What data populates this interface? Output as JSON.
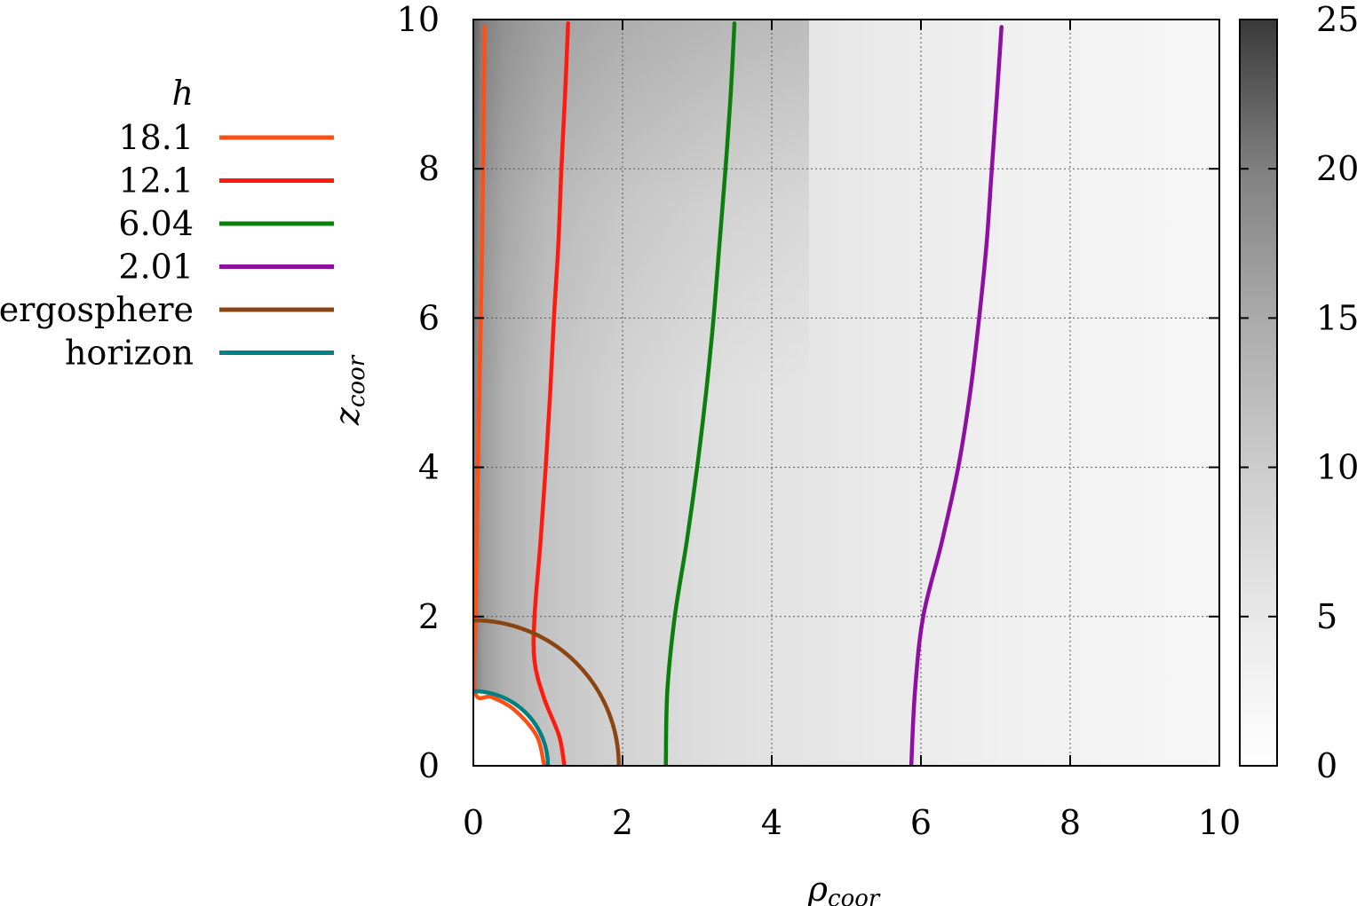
{
  "chart_data": {
    "type": "heatmap",
    "title": "",
    "xlabel": "ρ",
    "xlabel_sub": "coor",
    "ylabel": "z",
    "ylabel_sub": "coor",
    "xlim": [
      0,
      10
    ],
    "ylim": [
      0,
      10
    ],
    "x_ticks": [
      "0",
      "2",
      "4",
      "6",
      "8",
      "10"
    ],
    "y_ticks": [
      "0",
      "2",
      "4",
      "6",
      "8",
      "10"
    ],
    "grid": true,
    "colorbar": {
      "range": [
        0,
        25
      ],
      "ticks": [
        "0",
        "5",
        "10",
        "15",
        "20",
        "25"
      ],
      "colormap": "white-to-black grayscale"
    },
    "legend": {
      "title": "h",
      "placement": "left, outside plot"
    },
    "series": [
      {
        "name": "18.1",
        "color": "#ff4f14",
        "kind": "contour",
        "points": [
          [
            0.95,
            0
          ],
          [
            0.85,
            0.4
          ],
          [
            0.55,
            0.75
          ],
          [
            0.25,
            0.92
          ],
          [
            0.02,
            1.0
          ],
          [
            0.03,
            2
          ],
          [
            0.06,
            4
          ],
          [
            0.1,
            6
          ],
          [
            0.13,
            8
          ],
          [
            0.15,
            9.9
          ]
        ]
      },
      {
        "name": "12.1",
        "color": "#ff1a0f",
        "kind": "contour",
        "points": [
          [
            1.22,
            0
          ],
          [
            1.15,
            0.4
          ],
          [
            0.95,
            0.9
          ],
          [
            0.82,
            1.4
          ],
          [
            0.82,
            2
          ],
          [
            0.9,
            3
          ],
          [
            0.97,
            4
          ],
          [
            1.03,
            5
          ],
          [
            1.08,
            6
          ],
          [
            1.14,
            7
          ],
          [
            1.18,
            8
          ],
          [
            1.23,
            9
          ],
          [
            1.27,
            9.95
          ]
        ]
      },
      {
        "name": "6.04",
        "color": "#0b7f0b",
        "kind": "contour",
        "points": [
          [
            2.58,
            0
          ],
          [
            2.6,
            1
          ],
          [
            2.7,
            2
          ],
          [
            2.86,
            3
          ],
          [
            3.0,
            4
          ],
          [
            3.12,
            5
          ],
          [
            3.22,
            6
          ],
          [
            3.3,
            7
          ],
          [
            3.38,
            8
          ],
          [
            3.45,
            9
          ],
          [
            3.5,
            9.95
          ]
        ]
      },
      {
        "name": "2.01",
        "color": "#8f0fa3",
        "kind": "contour",
        "points": [
          [
            5.87,
            0
          ],
          [
            5.92,
            1
          ],
          [
            6.03,
            2
          ],
          [
            6.28,
            3
          ],
          [
            6.5,
            4
          ],
          [
            6.66,
            5
          ],
          [
            6.78,
            6
          ],
          [
            6.88,
            7
          ],
          [
            6.95,
            8
          ],
          [
            7.02,
            9
          ],
          [
            7.08,
            9.9
          ]
        ]
      },
      {
        "name": "ergosphere",
        "color": "#8b4513",
        "kind": "circle",
        "center": [
          0,
          0
        ],
        "radius": 1.95
      },
      {
        "name": "horizon",
        "color": "#008080",
        "kind": "circle",
        "center": [
          0,
          0
        ],
        "radius": 1.0
      }
    ]
  }
}
